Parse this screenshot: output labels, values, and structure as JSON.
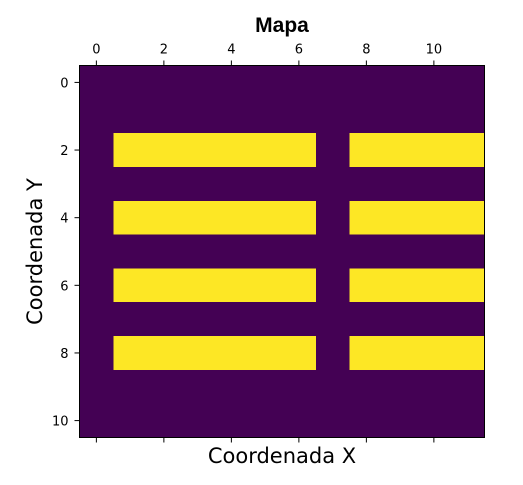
{
  "chart_data": {
    "type": "heatmap",
    "title": "Mapa",
    "xlabel": "Coordenada X",
    "ylabel": "Coordenada Y",
    "x_ticks": [
      0,
      2,
      4,
      6,
      8,
      10
    ],
    "y_ticks": [
      0,
      2,
      4,
      6,
      8,
      10
    ],
    "x_tick_labels": [
      "0",
      "2",
      "4",
      "6",
      "8",
      "10"
    ],
    "y_tick_labels": [
      "0",
      "2",
      "4",
      "6",
      "8",
      "10"
    ],
    "x_range": [
      -0.5,
      11.5
    ],
    "y_range": [
      -0.5,
      10.5
    ],
    "x_tick_labels_position": "top",
    "colormap": {
      "0": "#440154",
      "1": "#fde725"
    },
    "values": [
      [
        0,
        0,
        0,
        0,
        0,
        0,
        0,
        0,
        0,
        0,
        0,
        0
      ],
      [
        0,
        0,
        0,
        0,
        0,
        0,
        0,
        0,
        0,
        0,
        0,
        0
      ],
      [
        0,
        1,
        1,
        1,
        1,
        1,
        1,
        0,
        1,
        1,
        1,
        1
      ],
      [
        0,
        0,
        0,
        0,
        0,
        0,
        0,
        0,
        0,
        0,
        0,
        0
      ],
      [
        0,
        1,
        1,
        1,
        1,
        1,
        1,
        0,
        1,
        1,
        1,
        1
      ],
      [
        0,
        0,
        0,
        0,
        0,
        0,
        0,
        0,
        0,
        0,
        0,
        0
      ],
      [
        0,
        1,
        1,
        1,
        1,
        1,
        1,
        0,
        1,
        1,
        1,
        1
      ],
      [
        0,
        0,
        0,
        0,
        0,
        0,
        0,
        0,
        0,
        0,
        0,
        0
      ],
      [
        0,
        1,
        1,
        1,
        1,
        1,
        1,
        0,
        1,
        1,
        1,
        1
      ],
      [
        0,
        0,
        0,
        0,
        0,
        0,
        0,
        0,
        0,
        0,
        0,
        0
      ],
      [
        0,
        0,
        0,
        0,
        0,
        0,
        0,
        0,
        0,
        0,
        0,
        0
      ]
    ]
  }
}
